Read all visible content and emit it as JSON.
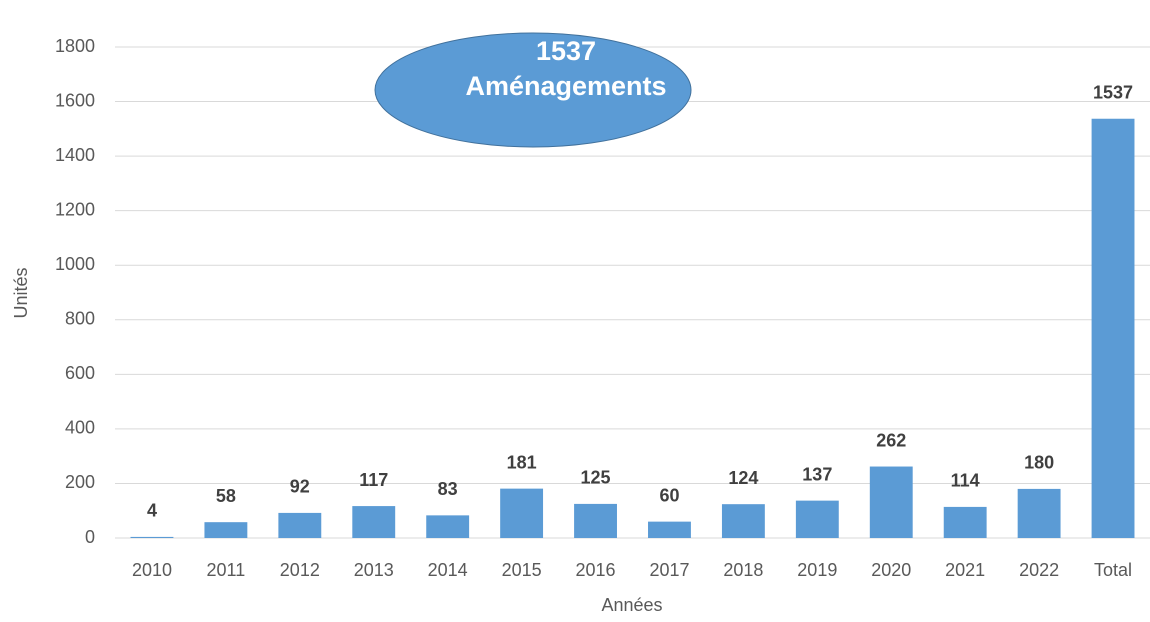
{
  "chart_data": {
    "type": "bar",
    "x_label": "Années",
    "y_label": "Unités",
    "annotation": [
      "1537",
      "Aménagements"
    ],
    "categories": [
      "2010",
      "2011",
      "2012",
      "2013",
      "2014",
      "2015",
      "2016",
      "2017",
      "2018",
      "2019",
      "2020",
      "2021",
      "2022",
      "Total"
    ],
    "values": [
      4,
      58,
      92,
      117,
      83,
      181,
      125,
      60,
      124,
      137,
      262,
      114,
      180,
      1537
    ],
    "color": "#5b9bd5",
    "ylim": [
      0,
      1800
    ],
    "yticks": [
      0,
      200,
      400,
      600,
      800,
      1000,
      1200,
      1400,
      1600,
      1800
    ],
    "grid": true
  }
}
